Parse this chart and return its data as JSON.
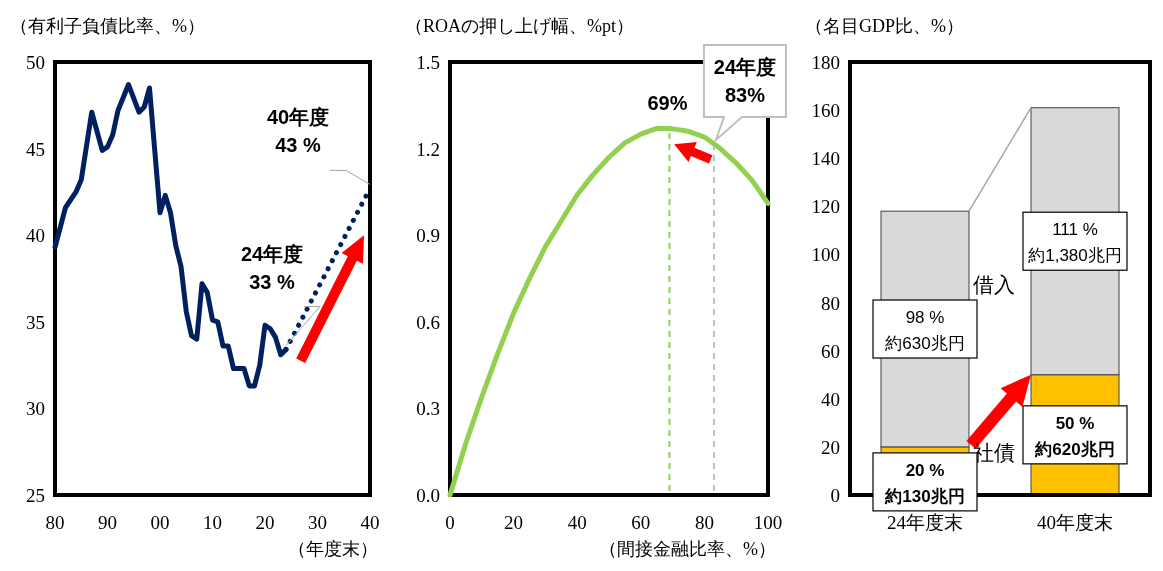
{
  "chart_data": [
    {
      "type": "line",
      "ylabel": "（有利子負債比率、%）",
      "xlabel": "（年度末）",
      "xlim": [
        1980,
        2040
      ],
      "ylim": [
        25,
        50
      ],
      "xticks": [
        {
          "value": 1980,
          "label": "80"
        },
        {
          "value": 1990,
          "label": "90"
        },
        {
          "value": 2000,
          "label": "00"
        },
        {
          "value": 2010,
          "label": "10"
        },
        {
          "value": 2020,
          "label": "20"
        },
        {
          "value": 2030,
          "label": "30"
        },
        {
          "value": 2040,
          "label": "40"
        }
      ],
      "yticks": [
        25,
        30,
        35,
        40,
        45,
        50
      ],
      "series": [
        {
          "color": "#002060",
          "line_style": "solid",
          "x": [
            1980,
            1982,
            1984,
            1985,
            1987,
            1989,
            1990,
            1991,
            1992,
            1994,
            1996,
            1997,
            1998,
            2000,
            2001,
            2002,
            2003,
            2004,
            2005,
            2006,
            2007,
            2008,
            2009,
            2010,
            2011,
            2012,
            2013,
            2014,
            2015,
            2016,
            2017,
            2018,
            2019,
            2020,
            2021,
            2022,
            2023,
            2024
          ],
          "values": [
            39.3,
            41.6,
            42.5,
            43.2,
            47.1,
            44.9,
            45.1,
            45.8,
            47.2,
            48.7,
            47.1,
            47.4,
            48.5,
            41.3,
            42.3,
            41.3,
            39.4,
            38.2,
            35.6,
            34.2,
            34.0,
            37.2,
            36.7,
            35.1,
            35.0,
            33.6,
            33.6,
            32.3,
            32.3,
            32.3,
            31.3,
            31.3,
            32.5,
            34.8,
            34.6,
            34.1,
            33.1,
            33.4
          ]
        },
        {
          "color": "#002060",
          "line_style": "dotted",
          "x": [
            2024,
            2040
          ],
          "values": [
            33.4,
            42.7
          ]
        }
      ],
      "annotations": [
        {
          "text": "24年度\n33 %",
          "x": 2024,
          "y": 33.4
        },
        {
          "text": "40年度\n43 %",
          "x": 2040,
          "y": 42.7
        }
      ]
    },
    {
      "type": "line",
      "ylabel": "（ROAの押し上げ幅、%pt）",
      "xlabel": "（間接金融比率、%）",
      "xlim": [
        0,
        100
      ],
      "ylim": [
        0,
        1.5
      ],
      "xticks": [
        0,
        20,
        40,
        60,
        80,
        100
      ],
      "yticks": [
        {
          "value": 0,
          "label": "0.0"
        },
        0.3,
        0.6,
        0.9,
        1.2,
        1.5
      ],
      "series": [
        {
          "color": "#92d050",
          "line_style": "solid",
          "x": [
            0,
            5,
            10,
            15,
            20,
            25,
            30,
            35,
            40,
            45,
            50,
            55,
            60,
            65,
            69,
            75,
            80,
            85,
            90,
            95,
            100
          ],
          "values": [
            0,
            0.18,
            0.34,
            0.49,
            0.63,
            0.75,
            0.86,
            0.95,
            1.04,
            1.11,
            1.17,
            1.22,
            1.25,
            1.27,
            1.27,
            1.26,
            1.24,
            1.2,
            1.15,
            1.09,
            1.01
          ]
        }
      ],
      "ref_lines": [
        {
          "axis": "x",
          "value": 69,
          "label": "69%",
          "color": "#92d050",
          "line_style": "dashed"
        },
        {
          "axis": "x",
          "value": 83,
          "label": "24年度\n83%",
          "color": "#bfbfbf",
          "line_style": "dashed"
        }
      ]
    },
    {
      "type": "bar",
      "stacked": true,
      "ylabel": "（名目GDP比、%）",
      "categories": [
        "24年度末",
        "40年度末"
      ],
      "ylim": [
        0,
        180
      ],
      "yticks": [
        0,
        20,
        40,
        60,
        80,
        100,
        120,
        140,
        160,
        180
      ],
      "series": [
        {
          "name": "社債",
          "color": "#ffc000",
          "values": [
            20,
            50
          ],
          "value_labels": [
            "20 %\n約130兆円",
            "50 %\n約620兆円"
          ]
        },
        {
          "name": "借入",
          "color": "#d9d9d9",
          "values": [
            98,
            111
          ],
          "value_labels": [
            "98 %\n約630兆円",
            "111 %\n約1,380兆円"
          ]
        }
      ]
    }
  ]
}
